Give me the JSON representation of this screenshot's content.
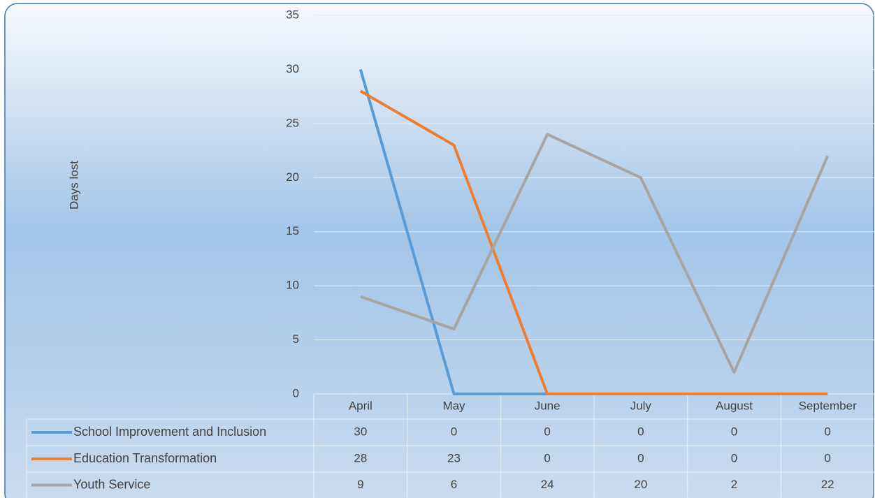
{
  "chart_data": {
    "type": "line",
    "y_label": "Days lost",
    "categories": [
      "April",
      "May",
      "June",
      "July",
      "August",
      "September"
    ],
    "series": [
      {
        "name": "School Improvement and Inclusion",
        "color": "#5b9bd5",
        "values": [
          30,
          0,
          0,
          0,
          0,
          0
        ]
      },
      {
        "name": "Education Transformation",
        "color": "#ed7d31",
        "values": [
          28,
          23,
          0,
          0,
          0,
          0
        ]
      },
      {
        "name": "Youth Service",
        "color": "#a5a5a5",
        "values": [
          9,
          6,
          24,
          20,
          2,
          22
        ]
      }
    ],
    "ylim": [
      0,
      35
    ],
    "yticks": [
      0,
      5,
      10,
      15,
      20,
      25,
      30,
      35
    ],
    "grid": true,
    "data_table": true
  }
}
